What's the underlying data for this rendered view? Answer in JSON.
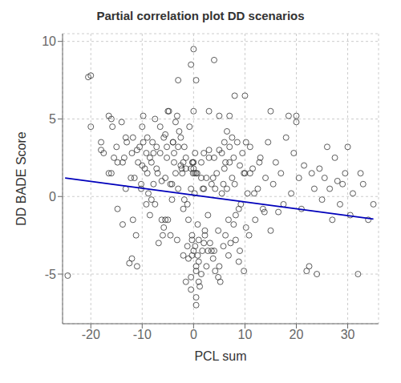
{
  "chart_data": {
    "type": "scatter",
    "title": "Partial correlation plot DD scenarios",
    "xlabel": "PCL sum",
    "ylabel": "DD BADE Score",
    "xlim": [
      -25.5,
      36
    ],
    "ylim": [
      -8.2,
      10.5
    ],
    "xticks": [
      -20,
      -10,
      0,
      10,
      20,
      30
    ],
    "yticks": [
      -5,
      0,
      5,
      10
    ],
    "grid": true,
    "series": [
      {
        "type": "scatter",
        "color": "#333333",
        "marker": "open circle",
        "x": [
          -24.5,
          -20.5,
          -20.0,
          -18.0,
          -17.5,
          -16.5,
          -16.0,
          -15.5,
          -15.0,
          -14.8,
          -14.0,
          -13.8,
          -13.5,
          -13.2,
          -12.5,
          -12.0,
          -11.8,
          -11.5,
          -11.0,
          -10.8,
          -10.5,
          -10.2,
          -10.0,
          -9.8,
          -9.5,
          -9.2,
          -9.0,
          -8.8,
          -8.5,
          -8.2,
          -8.0,
          -7.8,
          -7.5,
          -7.2,
          -7.0,
          -6.8,
          -6.5,
          -6.2,
          -6.0,
          -5.8,
          -5.5,
          -5.2,
          -5.0,
          -4.8,
          -4.5,
          -4.2,
          -4.0,
          -3.8,
          -3.5,
          -3.2,
          -3.0,
          -2.8,
          -2.5,
          -2.3,
          -2.0,
          -1.8,
          -1.5,
          -1.2,
          -1.0,
          -0.8,
          -0.5,
          -0.3,
          -0.2,
          -0.1,
          0.0,
          0.0,
          0.2,
          0.3,
          0.5,
          0.7,
          0.8,
          1.0,
          1.2,
          1.5,
          1.7,
          2.0,
          2.2,
          2.5,
          2.8,
          3.0,
          3.2,
          3.5,
          3.8,
          4.0,
          4.2,
          4.5,
          4.8,
          5.0,
          5.2,
          5.5,
          5.8,
          6.0,
          6.2,
          6.5,
          6.8,
          7.0,
          7.2,
          7.5,
          7.8,
          8.0,
          8.2,
          8.5,
          8.8,
          9.0,
          9.2,
          9.5,
          9.8,
          10.0,
          10.2,
          10.5,
          11.0,
          11.5,
          12.0,
          12.5,
          13.0,
          13.5,
          14.0,
          14.5,
          15.0,
          15.5,
          16.0,
          16.5,
          17.0,
          17.5,
          18.0,
          18.5,
          19.0,
          19.5,
          20.0,
          20.5,
          21.0,
          21.5,
          22.0,
          22.5,
          23.0,
          23.5,
          24.0,
          24.5,
          25.0,
          25.5,
          26.0,
          26.5,
          27.0,
          27.5,
          28.0,
          28.5,
          29.0,
          29.5,
          30.0,
          30.5,
          31.0,
          32.0,
          32.5,
          33.0,
          34.0,
          35.0,
          -16.5,
          -14.8,
          -13.2,
          -12.2,
          -11.2,
          -10.2,
          -9.2,
          -8.2,
          -7.2,
          -6.2,
          -5.2,
          -4.2,
          -3.2,
          -2.2,
          -1.2,
          -0.2,
          0.8,
          1.8,
          2.8,
          3.8,
          4.8,
          5.8,
          6.8,
          7.8,
          8.8,
          9.8,
          10.8,
          11.8,
          12.8,
          13.8,
          -15.8,
          -13.8,
          -11.8,
          -9.8,
          -7.8,
          -5.8,
          -3.8,
          -1.8,
          0.2,
          2.2,
          4.2,
          6.2,
          8.2,
          10.2,
          -0.5,
          0.5,
          0.5,
          1.5,
          -1.5,
          0.0,
          -0.5,
          0.5,
          4.0,
          5.0,
          -5.0,
          -3.0,
          3.0,
          8.0,
          10.0,
          7.0,
          20.0,
          -20.0,
          -18.0,
          -16.0,
          15.0,
          -0.3,
          -0.3,
          0.3,
          1.0,
          2.0,
          -1.0,
          0.5,
          -0.5,
          1.0,
          2.5,
          3.5,
          -2.0,
          -2.5,
          -3.5,
          -4.5,
          -5.5,
          5.0,
          6.0,
          7.0,
          9.0,
          11.0,
          -8.5,
          -9.0,
          -10.0,
          -11.0,
          -12.0,
          -13.0,
          0.0,
          0.0,
          0.5,
          -0.5,
          1.5,
          -1.5,
          2.0,
          -2.0,
          3.0,
          -3.0,
          4.0,
          -4.0,
          5.5,
          -5.5,
          6.5,
          -6.5,
          7.5,
          -7.5
        ],
        "values": [
          -5.1,
          7.7,
          4.5,
          3.0,
          2.8,
          5.2,
          1.5,
          2.5,
          3.2,
          2.2,
          4.8,
          -1.8,
          2.5,
          0.5,
          -4.3,
          -4.0,
          3.8,
          1.2,
          -4.5,
          2.2,
          3.2,
          0.8,
          4.5,
          5.2,
          1.8,
          -0.5,
          3.8,
          0.2,
          -1.2,
          2.2,
          3.5,
          2.8,
          -0.5,
          3.2,
          1.5,
          -3.0,
          2.8,
          1.0,
          -2.5,
          3.8,
          1.2,
          2.5,
          -1.5,
          5.5,
          0.8,
          -0.2,
          3.5,
          2.2,
          4.8,
          5.2,
          0.5,
          4.2,
          3.8,
          1.8,
          -0.8,
          3.2,
          2.5,
          -3.2,
          -1.5,
          4.5,
          1.8,
          -2.8,
          2.2,
          1.5,
          5.5,
          -3.5,
          0.2,
          2.8,
          -4.5,
          1.5,
          -3.8,
          -4.2,
          -5.8,
          2.2,
          -3.5,
          0.5,
          -2.2,
          1.2,
          -1.2,
          2.5,
          -3.0,
          0.8,
          -4.0,
          -3.5,
          -4.8,
          1.5,
          -5.2,
          -4.5,
          -5.5,
          0.2,
          -3.2,
          1.8,
          -2.5,
          0.5,
          -3.8,
          2.2,
          -3.0,
          1.2,
          -1.8,
          0.8,
          -2.8,
          3.5,
          -4.2,
          -3.5,
          -0.5,
          2.8,
          -4.8,
          1.5,
          -2.0,
          0.2,
          3.2,
          1.8,
          -1.5,
          0.5,
          2.5,
          -0.8,
          1.2,
          3.5,
          -2.2,
          0.8,
          2.2,
          -1.0,
          1.5,
          -0.5,
          3.8,
          5.2,
          0.2,
          2.8,
          4.8,
          1.2,
          -0.8,
          2.0,
          -4.8,
          -4.5,
          1.5,
          0.5,
          -5.0,
          1.8,
          -0.2,
          1.2,
          3.2,
          0.5,
          -1.5,
          2.5,
          1.0,
          -0.5,
          0.8,
          1.5,
          3.2,
          -1.2,
          0.2,
          -5.0,
          1.5,
          0.8,
          -1.5,
          -0.5,
          1.5,
          -0.8,
          3.8,
          1.2,
          -2.5,
          0.5,
          2.8,
          -0.2,
          1.8,
          -1.5,
          3.2,
          0.8,
          -2.8,
          1.5,
          -0.5,
          2.2,
          -1.8,
          0.5,
          -3.5,
          1.2,
          -2.2,
          0.8,
          -1.5,
          2.5,
          -0.8,
          1.5,
          -2.5,
          0.2,
          2.2,
          -1.0,
          4.5,
          2.2,
          -1.5,
          3.5,
          0.8,
          -2.0,
          2.8,
          -0.2,
          1.5,
          -2.5,
          0.5,
          2.2,
          -1.2,
          3.5,
          -6.0,
          -6.5,
          -7.0,
          -5.0,
          -5.5,
          9.5,
          8.5,
          7.5,
          8.8,
          5.2,
          5.5,
          7.5,
          5.5,
          6.5,
          6.5,
          5.2,
          5.2,
          7.8,
          3.5,
          5.0,
          5.5,
          -2.5,
          -3.8,
          -3.2,
          -2.8,
          -3.0,
          -4.0,
          -4.8,
          -5.2,
          -5.5,
          -4.5,
          -3.5,
          -3.8,
          2.0,
          1.5,
          -2.5,
          -1.5,
          3.0,
          3.5,
          3.2,
          2.0,
          1.5,
          2.5,
          1.5,
          2.0,
          3.0,
          2.8,
          3.5,
          1.8,
          2.2,
          1.5,
          0.5,
          1.2,
          1.8,
          2.8,
          2.2,
          3.0,
          3.2,
          2.5,
          3.5,
          2.8,
          4.0,
          4.2,
          4.5,
          3.8,
          5.0
        ]
      },
      {
        "type": "line",
        "color": "#0000BB",
        "x": [
          -25,
          35
        ],
        "values": [
          1.2,
          -1.45
        ]
      }
    ]
  }
}
